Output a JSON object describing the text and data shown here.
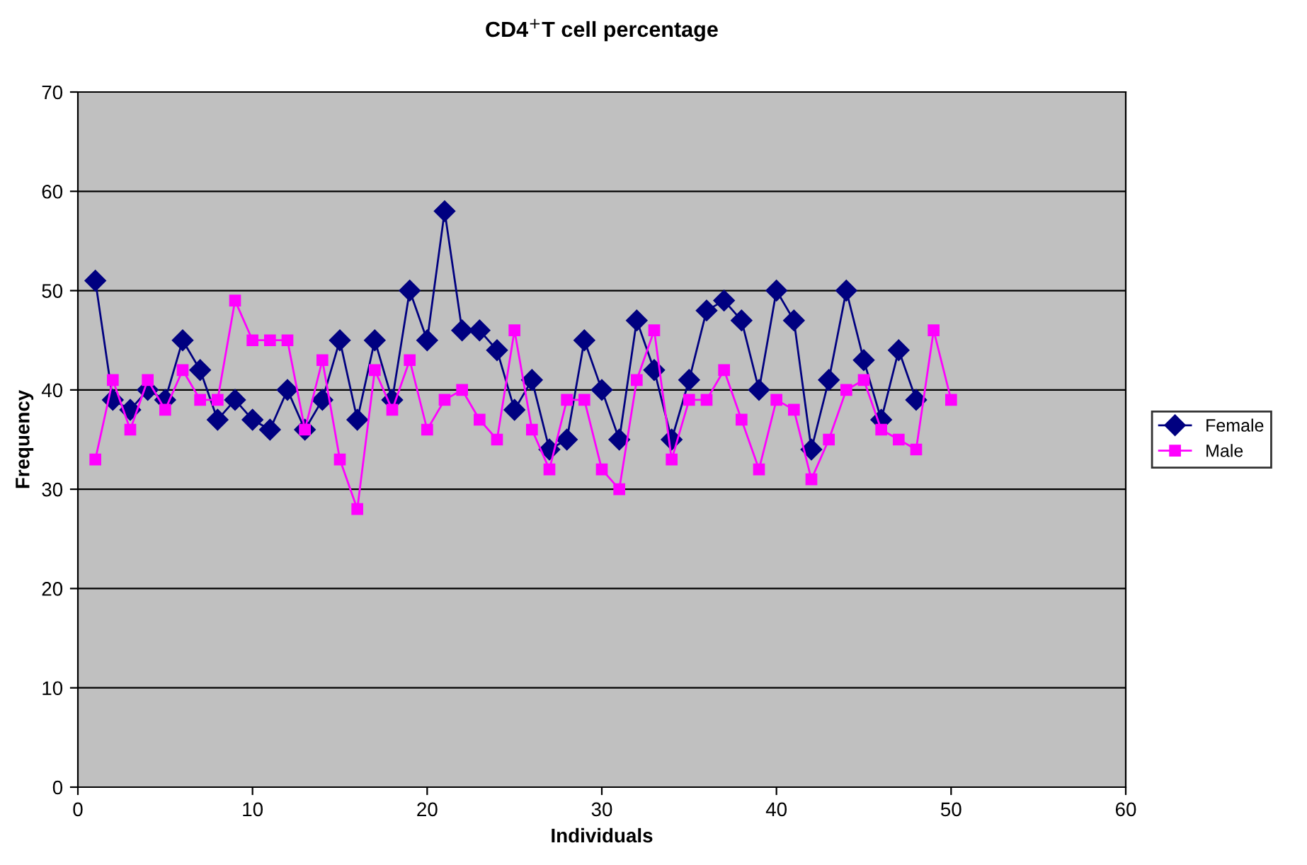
{
  "chart_data": {
    "type": "line",
    "title": "CD4$^{+}$T cell percentage",
    "xlabel": "Individuals",
    "ylabel": "Frequency",
    "xlim": [
      0,
      60
    ],
    "xticks": [
      0,
      10,
      20,
      30,
      40,
      50,
      60
    ],
    "ylim": [
      0,
      70
    ],
    "yticks": [
      0,
      10,
      20,
      30,
      40,
      50,
      60,
      70
    ],
    "grid": "y",
    "legend": "right",
    "line_style": "solid",
    "series": [
      {
        "name": "Female",
        "color": "#000080",
        "marker": "diamond",
        "x": [
          1,
          2,
          3,
          4,
          5,
          6,
          7,
          8,
          9,
          10,
          11,
          12,
          13,
          14,
          15,
          16,
          17,
          18,
          19,
          20,
          21,
          22,
          23,
          24,
          25,
          26,
          27,
          28,
          29,
          30,
          31,
          32,
          33,
          34,
          35,
          36,
          37,
          38,
          39,
          40,
          41,
          42,
          43,
          44,
          45,
          46,
          47,
          48
        ],
        "values": [
          51,
          39,
          38,
          40,
          39,
          45,
          42,
          37,
          39,
          37,
          36,
          40,
          36,
          39,
          45,
          37,
          45,
          39,
          50,
          45,
          58,
          46,
          46,
          44,
          38,
          41,
          34,
          35,
          45,
          40,
          35,
          47,
          42,
          35,
          41,
          48,
          49,
          47,
          40,
          50,
          47,
          34,
          41,
          50,
          43,
          37,
          44,
          39
        ]
      },
      {
        "name": "Male",
        "color": "#ff00ff",
        "marker": "square",
        "x": [
          1,
          2,
          3,
          4,
          5,
          6,
          7,
          8,
          9,
          10,
          11,
          12,
          13,
          14,
          15,
          16,
          17,
          18,
          19,
          20,
          21,
          22,
          23,
          24,
          25,
          26,
          27,
          28,
          29,
          30,
          31,
          32,
          33,
          34,
          35,
          36,
          37,
          38,
          39,
          40,
          41,
          42,
          43,
          44,
          45,
          46,
          47,
          48,
          49,
          50
        ],
        "values": [
          33,
          41,
          36,
          41,
          38,
          42,
          39,
          39,
          49,
          45,
          45,
          45,
          36,
          43,
          33,
          28,
          42,
          38,
          43,
          36,
          39,
          40,
          37,
          35,
          46,
          36,
          32,
          39,
          39,
          32,
          30,
          41,
          46,
          33,
          39,
          39,
          42,
          37,
          32,
          39,
          38,
          31,
          35,
          40,
          41,
          36,
          35,
          34,
          46,
          39
        ]
      }
    ]
  }
}
